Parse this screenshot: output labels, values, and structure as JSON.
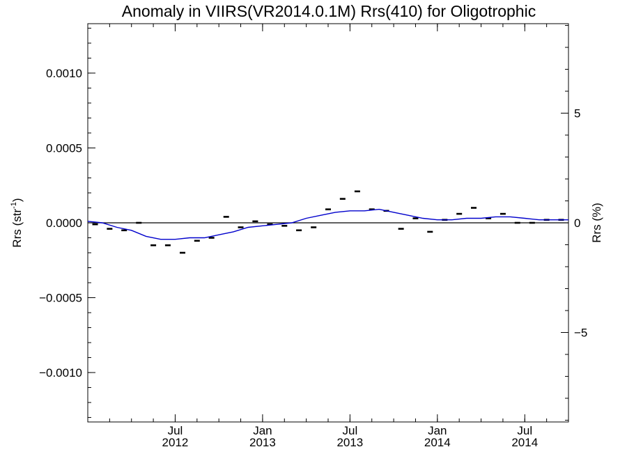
{
  "chart_data": {
    "type": "line",
    "title": "Anomaly in VIIRS(VR2014.0.1M) Rrs(410) for Oligotrophic",
    "ylabel": "Rrs (str",
    "ylabel_sup": "-1",
    "ylabel_close": ")",
    "y2label": "Rrs (%)",
    "xlim": [
      2012.0,
      2014.75
    ],
    "ylim": [
      -0.00133,
      0.00133
    ],
    "y2lim": [
      -9.08,
      9.08
    ],
    "y_ticks": [
      {
        "v": 0.001,
        "label": "0.0010"
      },
      {
        "v": 0.0005,
        "label": "0.0005"
      },
      {
        "v": 0.0,
        "label": "0.0000"
      },
      {
        "v": -0.0005,
        "label": "−0.0005"
      },
      {
        "v": -0.001,
        "label": "−0.0010"
      }
    ],
    "y2_ticks": [
      {
        "v": 5,
        "label": "5"
      },
      {
        "v": 0,
        "label": "0"
      },
      {
        "v": -5,
        "label": "−5"
      }
    ],
    "x_major_ticks": [
      {
        "x": 2012.5,
        "label1": "Jul",
        "label2": "2012"
      },
      {
        "x": 2013.0,
        "label1": "Jan",
        "label2": "2013"
      },
      {
        "x": 2013.5,
        "label1": "Jul",
        "label2": "2013"
      },
      {
        "x": 2014.0,
        "label1": "Jan",
        "label2": "2014"
      },
      {
        "x": 2014.5,
        "label1": "Jul",
        "label2": "2014"
      }
    ],
    "series": [
      {
        "kind": "points",
        "color": "#000000",
        "x": [
          2012.042,
          2012.125,
          2012.208,
          2012.292,
          2012.375,
          2012.458,
          2012.542,
          2012.625,
          2012.708,
          2012.792,
          2012.875,
          2012.958,
          2013.042,
          2013.125,
          2013.208,
          2013.292,
          2013.375,
          2013.458,
          2013.542,
          2013.625,
          2013.708,
          2013.792,
          2013.875,
          2013.958,
          2014.042,
          2014.125,
          2014.208,
          2014.292,
          2014.375,
          2014.458,
          2014.542,
          2014.625,
          2014.708
        ],
        "y": [
          -1e-05,
          -4e-05,
          -5e-05,
          0.0,
          -0.00015,
          -0.00015,
          -0.0002,
          -0.00012,
          -0.0001,
          4e-05,
          -3e-05,
          1e-05,
          -1e-05,
          -2e-05,
          -5e-05,
          -3e-05,
          9e-05,
          0.00016,
          0.00021,
          9e-05,
          8e-05,
          -4e-05,
          3e-05,
          -6e-05,
          2e-05,
          6e-05,
          0.0001,
          3e-05,
          6e-05,
          0.0,
          0.0,
          2e-05,
          2e-05
        ]
      },
      {
        "kind": "line",
        "color": "#0000cc",
        "x": [
          2012.0,
          2012.083,
          2012.167,
          2012.25,
          2012.333,
          2012.417,
          2012.5,
          2012.583,
          2012.667,
          2012.75,
          2012.833,
          2012.917,
          2013.0,
          2013.083,
          2013.167,
          2013.25,
          2013.333,
          2013.417,
          2013.5,
          2013.583,
          2013.667,
          2013.75,
          2013.833,
          2013.917,
          2014.0,
          2014.083,
          2014.167,
          2014.25,
          2014.333,
          2014.417,
          2014.5,
          2014.583,
          2014.667,
          2014.75
        ],
        "y": [
          1e-05,
          0.0,
          -3e-05,
          -5e-05,
          -9e-05,
          -0.00011,
          -0.00011,
          -0.0001,
          -0.0001,
          -8e-05,
          -6e-05,
          -3e-05,
          -2e-05,
          -1e-05,
          0.0,
          3e-05,
          5e-05,
          7e-05,
          8e-05,
          8e-05,
          9e-05,
          7e-05,
          5e-05,
          3e-05,
          2e-05,
          2e-05,
          3e-05,
          3e-05,
          4e-05,
          4e-05,
          3e-05,
          2e-05,
          2e-05,
          2e-05
        ]
      }
    ],
    "zero_line": true
  }
}
